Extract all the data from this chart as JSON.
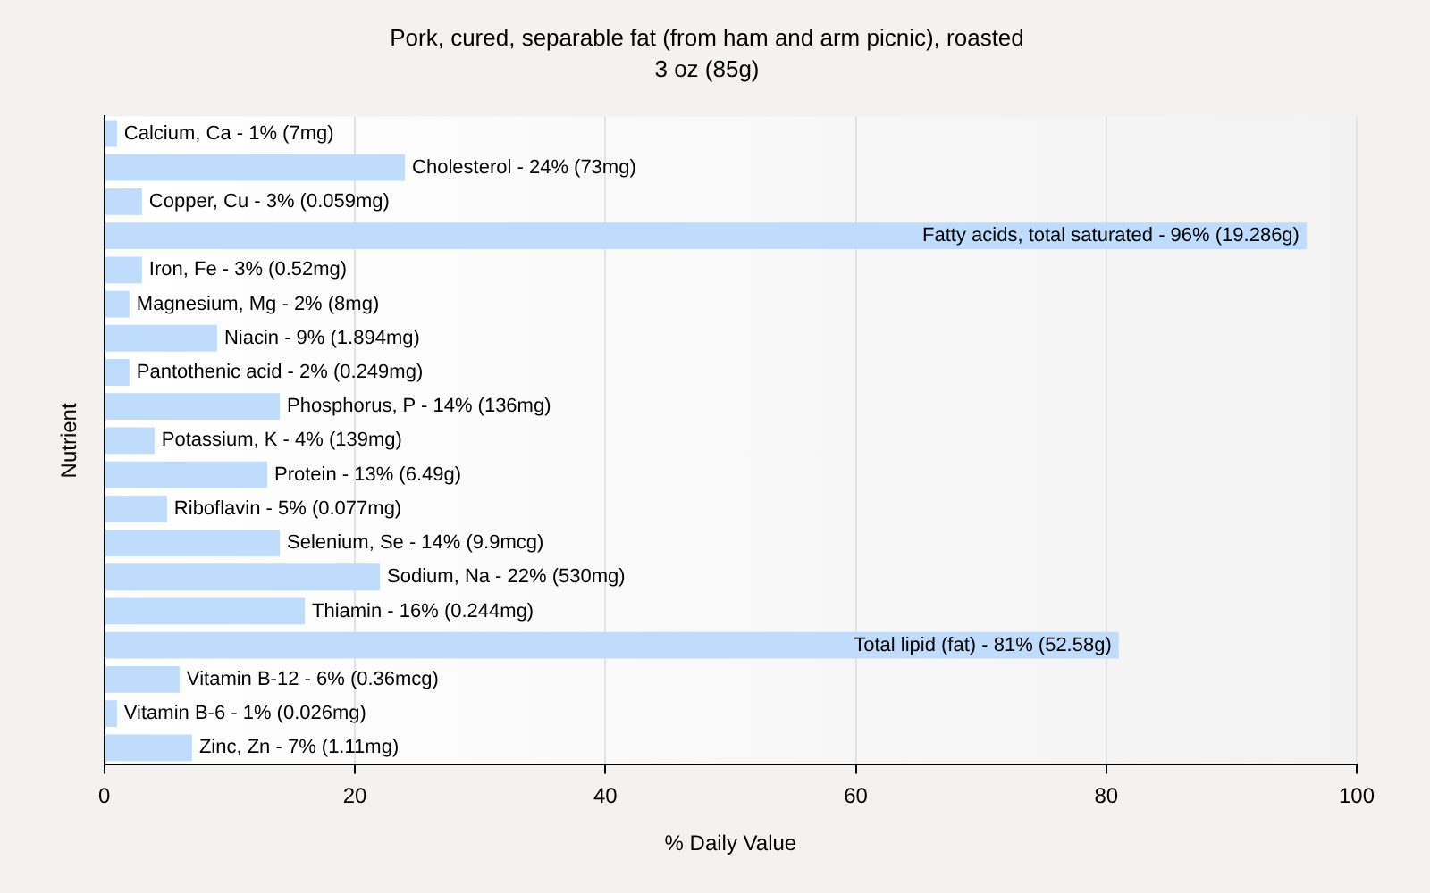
{
  "chart_data": {
    "type": "bar",
    "orientation": "horizontal",
    "title": "Pork, cured, separable fat (from ham and arm picnic), roasted",
    "subtitle": "3 oz (85g)",
    "xlabel": "% Daily Value",
    "ylabel": "Nutrient",
    "categories": [
      null,
      null,
      null,
      null,
      null,
      null,
      null,
      null,
      null,
      null,
      null,
      null,
      null,
      null,
      null,
      null,
      null,
      null,
      null
    ],
    "values": [
      1,
      24,
      3,
      96,
      3,
      2,
      9,
      2,
      14,
      4,
      13,
      5,
      14,
      22,
      16,
      81,
      6,
      1,
      7
    ],
    "annotations": [
      {
        "text": "Calcium, Ca - 1% (7mg)",
        "x": 1
      },
      {
        "text": "Cholesterol - 24% (73mg)",
        "x": 24
      },
      {
        "text": "Copper, Cu - 3% (0.059mg)",
        "x": 3
      },
      {
        "text": "Fatty acids, total saturated - 96% (19.286g)",
        "x": 96
      },
      {
        "text": "Iron, Fe - 3% (0.52mg)",
        "x": 3
      },
      {
        "text": "Magnesium, Mg - 2% (8mg)",
        "x": 2
      },
      {
        "text": "Niacin - 9% (1.894mg)",
        "x": 9
      },
      {
        "text": "Pantothenic acid - 2% (0.249mg)",
        "x": 2
      },
      {
        "text": "Phosphorus, P - 14% (136mg)",
        "x": 14
      },
      {
        "text": "Potassium, K - 4% (139mg)",
        "x": 4
      },
      {
        "text": "Protein - 13% (6.49g)",
        "x": 13
      },
      {
        "text": "Riboflavin - 5% (0.077mg)",
        "x": 5
      },
      {
        "text": "Selenium, Se - 14% (9.9mcg)",
        "x": 14
      },
      {
        "text": "Sodium, Na - 22% (530mg)",
        "x": 22
      },
      {
        "text": "Thiamin - 16% (0.244mg)",
        "x": 16
      },
      {
        "text": "Total lipid (fat) - 81% (52.58g)",
        "x": 81
      },
      {
        "text": "Vitamin B-12 - 6% (0.36mcg)",
        "x": 6
      },
      {
        "text": "Vitamin B-6 - 1% (0.026mg)",
        "x": 1
      },
      {
        "text": "Zinc, Zn - 7% (1.11mg)",
        "x": 7
      }
    ],
    "color": "#c0dcfc",
    "xlim": [
      0,
      100
    ],
    "xticks": [
      0,
      20,
      40,
      60,
      80,
      100
    ],
    "grid": "x",
    "tick_labels": "x"
  }
}
